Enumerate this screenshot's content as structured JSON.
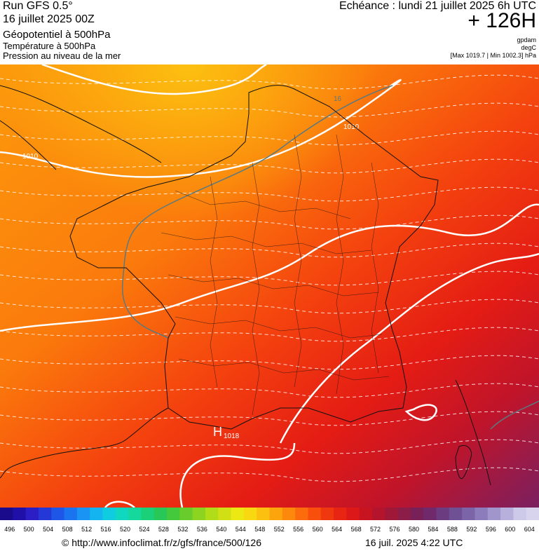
{
  "header": {
    "run": "Run GFS 0.5°",
    "date": "16 juillet 2025 00Z",
    "field_main": "Géopotentiel à 500hPa",
    "field_temp": "Température à 500hPa",
    "field_pressure": "Pression au niveau de la mer",
    "echeance": "Echéance : lundi 21 juillet 2025 6h UTC",
    "lead": "+ 126H",
    "unit_geo": "gpdam",
    "unit_temp": "degC",
    "pressure_range": "[Max 1019.7 | Min 1002.3] hPa"
  },
  "map": {
    "isobar_labels": [
      "1010",
      "1010",
      "1010"
    ],
    "temp_label": "16",
    "high_symbol": "H",
    "high_value": "1018"
  },
  "scale": {
    "ticks": [
      "496",
      "500",
      "504",
      "508",
      "512",
      "516",
      "520",
      "524",
      "528",
      "532",
      "536",
      "540",
      "544",
      "548",
      "552",
      "556",
      "560",
      "564",
      "568",
      "572",
      "576",
      "580",
      "584",
      "588",
      "592",
      "596",
      "600",
      "604"
    ],
    "colors": [
      "#1a0a8c",
      "#2010a8",
      "#2a1ec4",
      "#2438d8",
      "#1e56e8",
      "#1a74f0",
      "#1a94f4",
      "#14b4f0",
      "#10cce0",
      "#10d8c0",
      "#14d89c",
      "#1ad078",
      "#28c858",
      "#44c83c",
      "#68cc2c",
      "#8cd420",
      "#b0dc18",
      "#d0e014",
      "#ece814",
      "#f8d810",
      "#fcc010",
      "#fca40c",
      "#fc880c",
      "#fc6c0c",
      "#f8500c",
      "#f0380e",
      "#e82412",
      "#dc1818",
      "#c81420",
      "#b4142c",
      "#a01838",
      "#8c1c48",
      "#782058",
      "#702a6c",
      "#6c3c80",
      "#705094",
      "#7c64a8",
      "#8c7cbc",
      "#a096cc",
      "#b8b0dc",
      "#cccae8",
      "#d8d4ee"
    ]
  },
  "footer": {
    "credit": "© http://www.infoclimat.fr/z/gfs/france/500/126",
    "generated": "16 juil. 2025  4:22 UTC"
  }
}
